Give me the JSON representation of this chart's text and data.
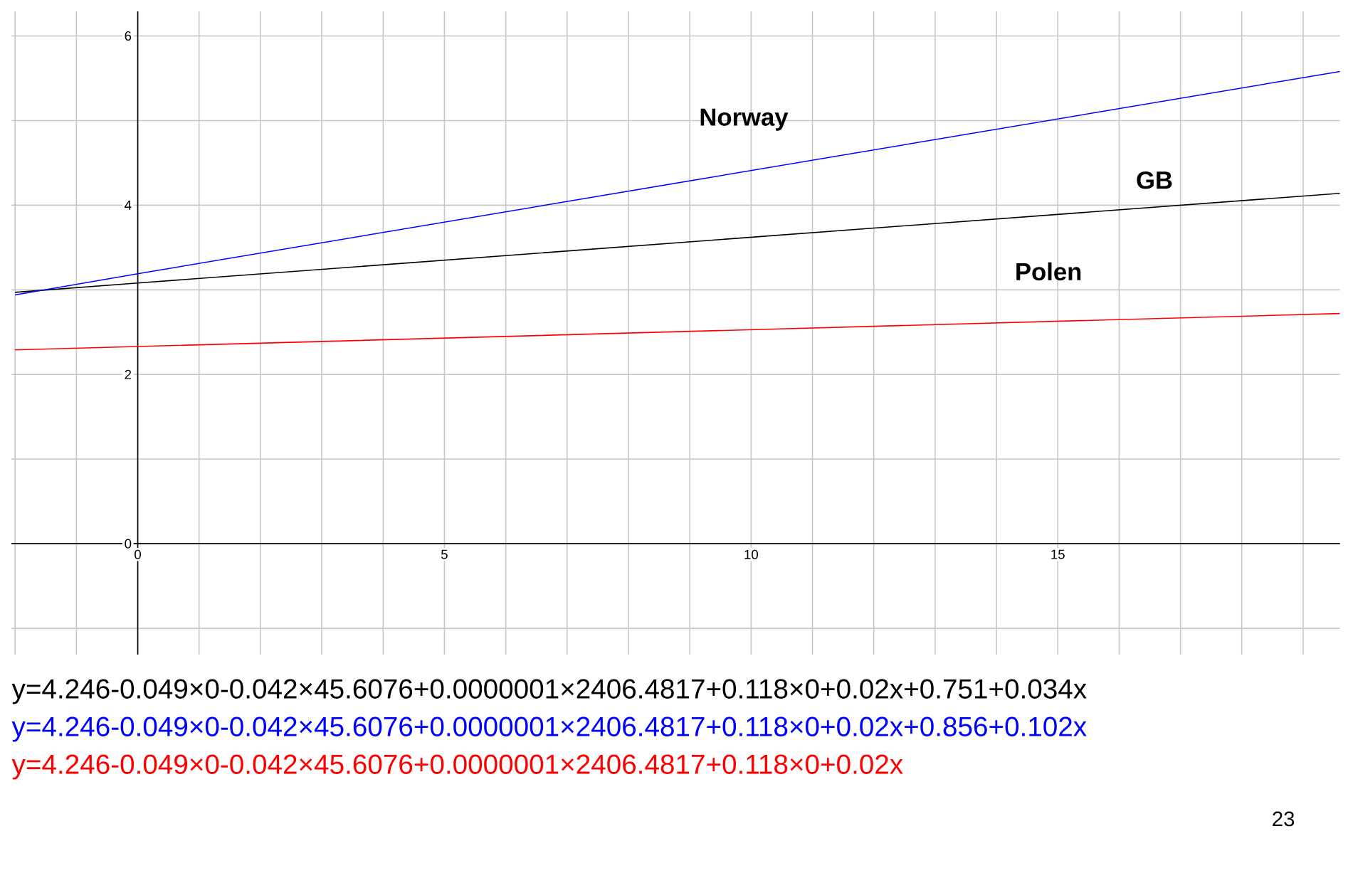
{
  "chart_data": {
    "type": "line",
    "xlim": [
      -2.06,
      19.6
    ],
    "ylim": [
      -1.31,
      6.29
    ],
    "xticks": [
      {
        "value": -2,
        "label": null
      },
      {
        "value": -1,
        "label": null
      },
      0,
      {
        "value": 1,
        "label": null
      },
      {
        "value": 2,
        "label": null
      },
      {
        "value": 3,
        "label": null
      },
      {
        "value": 4,
        "label": null
      },
      5,
      {
        "value": 6,
        "label": null
      },
      {
        "value": 7,
        "label": null
      },
      {
        "value": 8,
        "label": null
      },
      {
        "value": 9,
        "label": null
      },
      10,
      {
        "value": 11,
        "label": null
      },
      {
        "value": 12,
        "label": null
      },
      {
        "value": 13,
        "label": null
      },
      {
        "value": 14,
        "label": null
      },
      15,
      {
        "value": 16,
        "label": null
      },
      {
        "value": 17,
        "label": null
      },
      {
        "value": 18,
        "label": null
      },
      {
        "value": 19,
        "label": null
      }
    ],
    "yticks": [
      {
        "value": -1,
        "label": null
      },
      0,
      {
        "value": 1,
        "label": null
      },
      2,
      {
        "value": 3,
        "label": null
      },
      4,
      {
        "value": 5,
        "label": null
      },
      6
    ],
    "grid": true,
    "marker": "none",
    "line_style": "solid",
    "series": [
      {
        "name": "GB",
        "color": "#000000",
        "x": [
          -2,
          0,
          19.6
        ],
        "values": [
          2.97,
          3.08,
          4.14
        ]
      },
      {
        "name": "Norway",
        "color": "#0000ff",
        "x": [
          -2,
          0,
          19.6
        ],
        "values": [
          2.94,
          3.19,
          5.58
        ]
      },
      {
        "name": "Polen",
        "color": "#ff0000",
        "x": [
          -2,
          0,
          19.6
        ],
        "values": [
          2.29,
          2.33,
          2.72
        ]
      }
    ],
    "annotations": [
      "y=4.246-0.049×0-0.042×45.6076+0.0000001×2406.4817+0.118×0+0.02x+0.751+0.034x",
      "y=4.246-0.049×0-0.042×45.6076+0.0000001×2406.4817+0.118×0+0.02x+0.856+0.102x",
      "y=4.246-0.049×0-0.042×45.6076+0.0000001×2406.4817+0.118×0+0.02x",
      "23"
    ]
  }
}
